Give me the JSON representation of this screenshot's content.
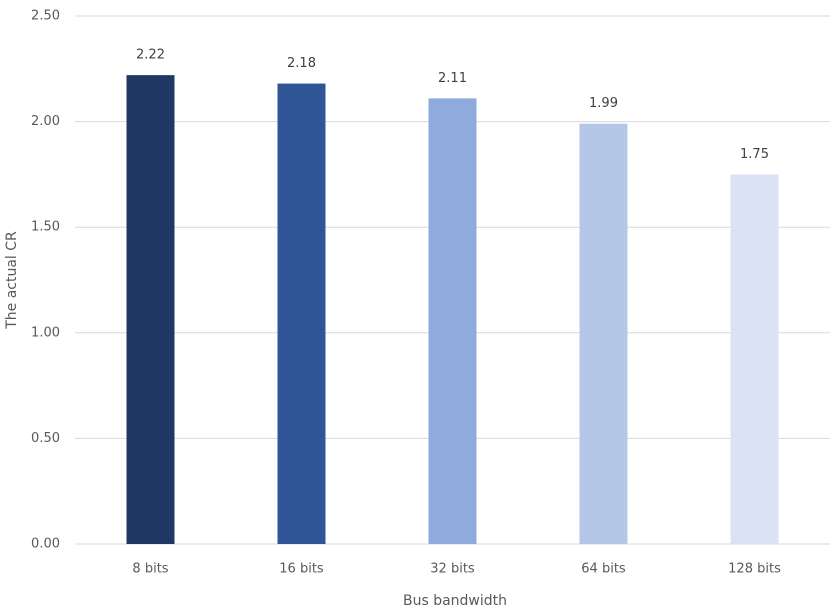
{
  "chart_data": {
    "type": "bar",
    "x_label": "Bus bandwidth",
    "y_label": "The actual CR",
    "categories": [
      "8 bits",
      "16 bits",
      "32 bits",
      "64 bits",
      "128 bits"
    ],
    "values": [
      2.22,
      2.18,
      2.11,
      1.99,
      1.75
    ],
    "colors": [
      "#1f3864",
      "#2f5597",
      "#8faadc",
      "#b4c7e7",
      "#dae3f3"
    ],
    "ylim": [
      0,
      2.5
    ],
    "yticks": [
      {
        "value": 0,
        "label": "0.00"
      },
      {
        "value": 0.5,
        "label": "0.50"
      },
      {
        "value": 1,
        "label": "1.00"
      },
      {
        "value": 1.5,
        "label": "1.50"
      },
      {
        "value": 2,
        "label": "2.00"
      },
      {
        "value": 2.5,
        "label": "2.50"
      }
    ],
    "grid": true,
    "data_labels": true
  }
}
